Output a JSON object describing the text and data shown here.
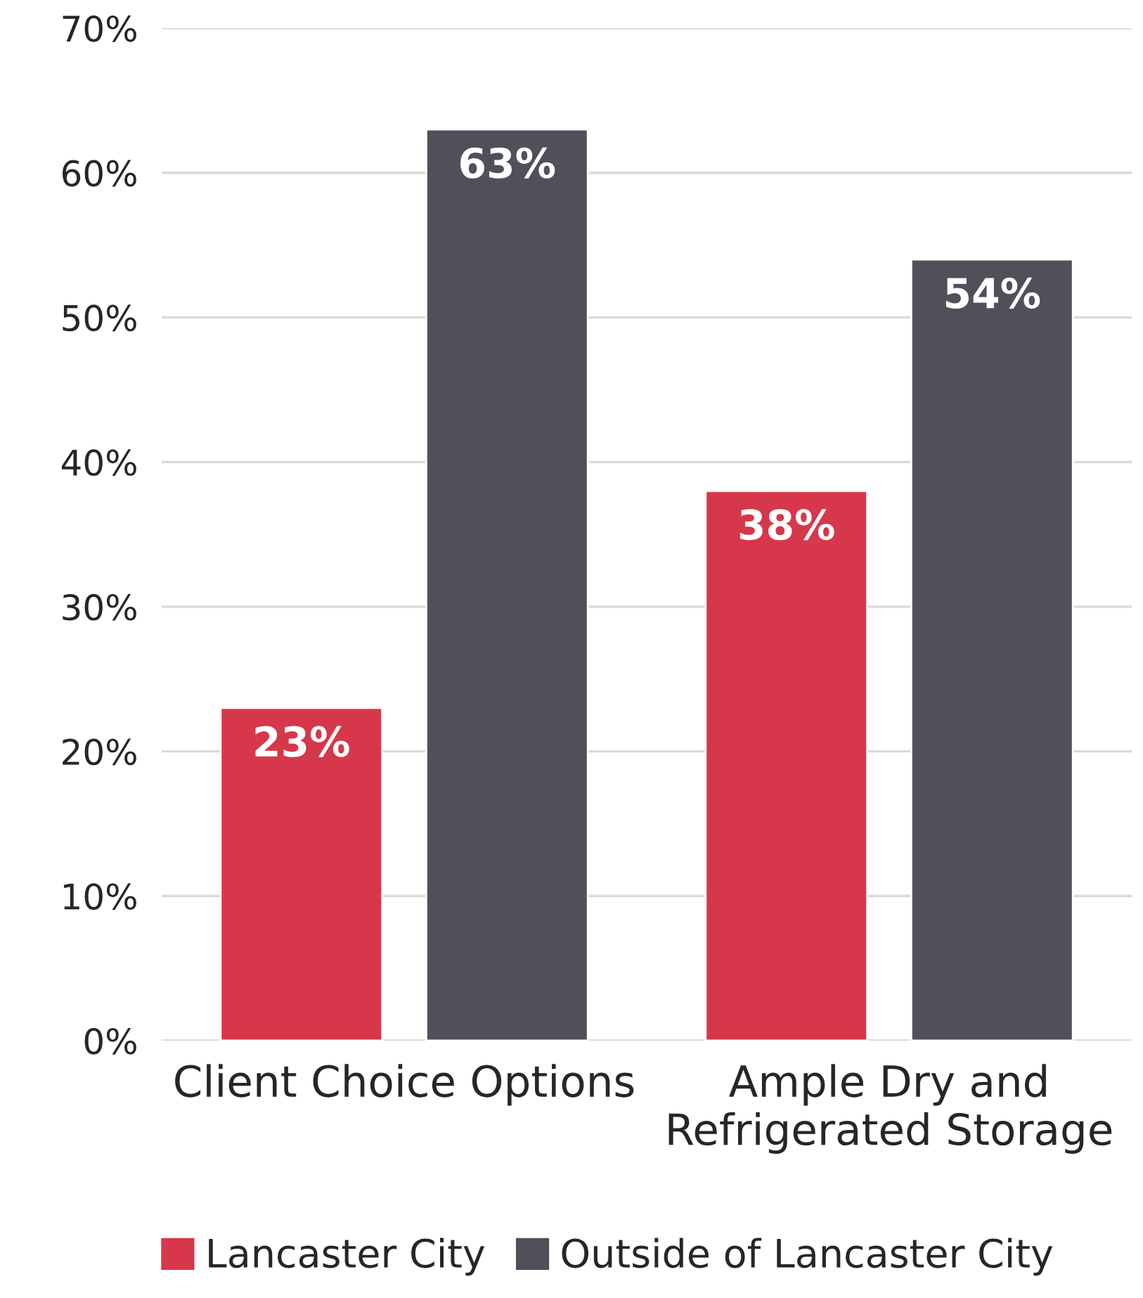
{
  "chart_data": {
    "type": "bar",
    "categories": [
      "Client Choice Options",
      "Ample Dry and\nRefrigerated Storage"
    ],
    "series": [
      {
        "name": "Lancaster City",
        "color": "#d7374a",
        "values": [
          23,
          38
        ],
        "value_labels": [
          "23%",
          "38%"
        ]
      },
      {
        "name": "Outside of Lancaster City",
        "color": "#4f505a",
        "values": [
          63,
          54
        ],
        "value_labels": [
          "63%",
          "54%"
        ]
      }
    ],
    "ylim": [
      0,
      70
    ],
    "yticks": [
      {
        "value": 0,
        "label": "0%"
      },
      {
        "value": 10,
        "label": "10%"
      },
      {
        "value": 20,
        "label": "20%"
      },
      {
        "value": 30,
        "label": "30%"
      },
      {
        "value": 40,
        "label": "40%"
      },
      {
        "value": 50,
        "label": "50%"
      },
      {
        "value": 60,
        "label": "60%"
      },
      {
        "value": 70,
        "label": "70%"
      }
    ],
    "grid": "y",
    "legend": "bottom"
  }
}
